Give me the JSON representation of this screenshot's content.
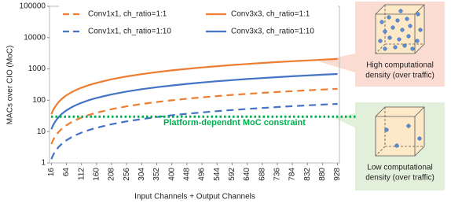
{
  "chart_data": {
    "type": "line",
    "xlabel": "Input Channels + Output Channels",
    "ylabel": "MACs over CIO (MoC)",
    "x": [
      16,
      20,
      24,
      32,
      40,
      48,
      56,
      64,
      80,
      96,
      112,
      136,
      160,
      208,
      256,
      304,
      352,
      400,
      448,
      496,
      544,
      592,
      640,
      688,
      736,
      784,
      832,
      880,
      928
    ],
    "series": [
      {
        "name": "Conv1x1, ch_ratio=1:1",
        "color": "#ed7d31",
        "dash": true,
        "values": [
          4,
          5,
          6,
          8,
          10,
          12,
          14,
          16,
          20,
          24,
          28,
          34,
          40,
          52,
          64,
          76,
          88,
          100,
          112,
          124,
          136,
          148,
          160,
          172,
          184,
          196,
          208,
          220,
          232
        ]
      },
      {
        "name": "Conv3x3, ch_ratio=1:1",
        "color": "#ed7d31",
        "dash": false,
        "values": [
          36,
          45,
          54,
          72,
          90,
          108,
          126,
          144,
          180,
          216,
          252,
          306,
          360,
          468,
          576,
          684,
          792,
          900,
          1008,
          1116,
          1224,
          1332,
          1440,
          1548,
          1656,
          1764,
          1872,
          1980,
          2088
        ]
      },
      {
        "name": "Conv1x1, ch_ratio=1:10",
        "color": "#4472c4",
        "dash": true,
        "values": [
          1.32,
          1.65,
          1.98,
          2.64,
          3.31,
          3.97,
          4.63,
          5.29,
          6.61,
          7.93,
          9.26,
          11.24,
          13.22,
          17.19,
          21.16,
          25.12,
          29.09,
          33.06,
          37.02,
          40.99,
          44.96,
          48.93,
          52.89,
          56.86,
          60.83,
          64.79,
          68.76,
          72.73,
          76.69
        ]
      },
      {
        "name": "Conv3x3, ch_ratio=1:10",
        "color": "#4472c4",
        "dash": false,
        "values": [
          11.9,
          14.88,
          17.85,
          23.8,
          29.75,
          35.7,
          41.65,
          47.6,
          59.5,
          71.4,
          83.31,
          101.16,
          119,
          154.71,
          190.41,
          226.12,
          261.82,
          297.52,
          333.22,
          368.93,
          404.63,
          440.33,
          476.03,
          511.74,
          547.44,
          583.14,
          618.84,
          654.55,
          690.25
        ]
      }
    ],
    "xlim": [
      10,
      934
    ],
    "xticks": [
      16,
      64,
      112,
      160,
      208,
      256,
      304,
      352,
      400,
      448,
      496,
      544,
      592,
      640,
      688,
      736,
      784,
      832,
      880,
      928
    ],
    "ylim": [
      1,
      100000
    ],
    "yticks": [
      1,
      10,
      100,
      1000,
      10000,
      100000
    ],
    "log_y": true,
    "constraint": {
      "label": "Platform-dependnt MoC constraint",
      "value": 30,
      "color": "#00b050"
    },
    "annotations": [
      {
        "lines": [
          "High computational",
          "density (over traffic)"
        ]
      },
      {
        "lines": [
          "Low computational",
          "density (over traffic)"
        ]
      }
    ]
  }
}
